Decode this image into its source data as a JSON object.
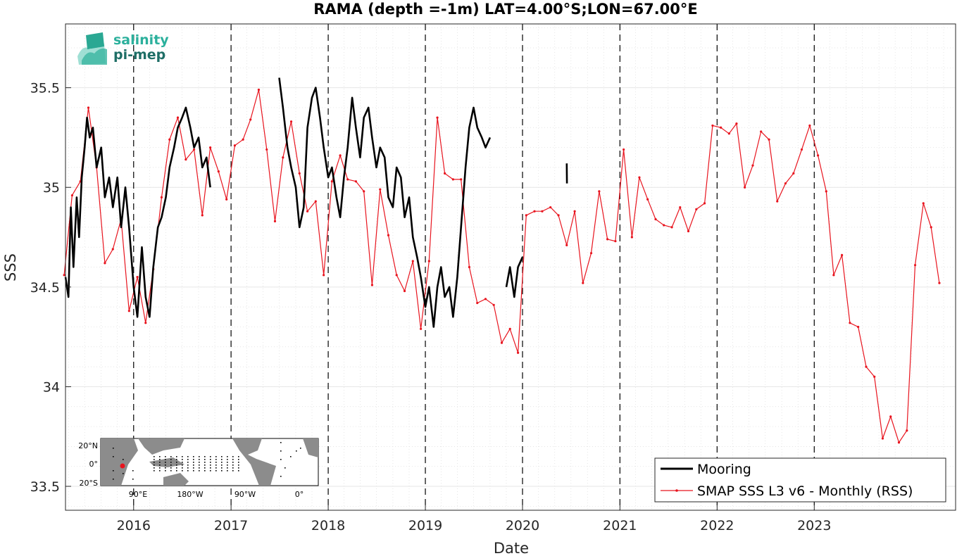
{
  "chart_data": {
    "type": "line",
    "title": "RAMA (depth =-1m) LAT=4.00°S;LON=67.00°E",
    "xlabel": "Date",
    "ylabel": "SSS",
    "xlim": [
      "2015-04-20",
      "2024-06-15"
    ],
    "ylim": [
      33.38,
      35.82
    ],
    "x_ticks": [
      "2016",
      "2017",
      "2018",
      "2019",
      "2020",
      "2021",
      "2022",
      "2023"
    ],
    "y_ticks": [
      "33.5",
      "34",
      "34.5",
      "35",
      "35.5"
    ],
    "year_lines": [
      "2016-01-01",
      "2017-01-01",
      "2018-01-01",
      "2019-01-01",
      "2020-01-01",
      "2021-01-01",
      "2022-01-01",
      "2023-01-01"
    ],
    "grid": true,
    "legend": "bottom-right",
    "colors": {
      "mooring": "#000000",
      "smap": "#e8141e"
    },
    "series": [
      {
        "name": "Mooring",
        "values": [
          [
            "2015-04-20",
            34.55
          ],
          [
            "2015-05-01",
            34.45
          ],
          [
            "2015-05-10",
            34.9
          ],
          [
            "2015-05-20",
            34.6
          ],
          [
            "2015-06-01",
            34.95
          ],
          [
            "2015-06-10",
            34.75
          ],
          [
            "2015-06-20",
            35.05
          ],
          [
            "2015-07-01",
            35.2
          ],
          [
            "2015-07-10",
            35.35
          ],
          [
            "2015-07-20",
            35.25
          ],
          [
            "2015-08-01",
            35.3
          ],
          [
            "2015-08-15",
            35.1
          ],
          [
            "2015-09-01",
            35.2
          ],
          [
            "2015-09-15",
            34.95
          ],
          [
            "2015-10-01",
            35.05
          ],
          [
            "2015-10-15",
            34.9
          ],
          [
            "2015-11-01",
            35.05
          ],
          [
            "2015-11-15",
            34.8
          ],
          [
            "2015-12-01",
            35.0
          ],
          [
            "2015-12-15",
            34.8
          ],
          [
            "2016-01-01",
            34.5
          ],
          [
            "2016-01-15",
            34.35
          ],
          [
            "2016-02-01",
            34.7
          ],
          [
            "2016-02-15",
            34.45
          ],
          [
            "2016-03-01",
            34.35
          ],
          [
            "2016-03-15",
            34.6
          ],
          [
            "2016-04-01",
            34.8
          ],
          [
            "2016-04-15",
            34.85
          ],
          [
            "2016-05-01",
            34.95
          ],
          [
            "2016-05-15",
            35.1
          ],
          [
            "2016-06-01",
            35.2
          ],
          [
            "2016-06-15",
            35.3
          ],
          [
            "2016-07-01",
            35.35
          ],
          [
            "2016-07-15",
            35.4
          ],
          [
            "2016-08-01",
            35.3
          ],
          [
            "2016-08-15",
            35.2
          ],
          [
            "2016-09-01",
            35.25
          ],
          [
            "2016-09-15",
            35.1
          ],
          [
            "2016-10-01",
            35.15
          ],
          [
            "2016-10-15",
            35.0
          ],
          [
            "2017-07-01",
            35.55
          ],
          [
            "2017-07-15",
            35.4
          ],
          [
            "2017-08-01",
            35.2
          ],
          [
            "2017-08-15",
            35.1
          ],
          [
            "2017-09-01",
            35.0
          ],
          [
            "2017-09-15",
            34.8
          ],
          [
            "2017-10-01",
            34.9
          ],
          [
            "2017-10-15",
            35.3
          ],
          [
            "2017-11-01",
            35.45
          ],
          [
            "2017-11-15",
            35.5
          ],
          [
            "2017-12-01",
            35.35
          ],
          [
            "2017-12-15",
            35.2
          ],
          [
            "2018-01-01",
            35.05
          ],
          [
            "2018-01-15",
            35.1
          ],
          [
            "2018-02-01",
            34.95
          ],
          [
            "2018-02-15",
            34.85
          ],
          [
            "2018-03-01",
            35.05
          ],
          [
            "2018-03-15",
            35.2
          ],
          [
            "2018-04-01",
            35.45
          ],
          [
            "2018-04-15",
            35.3
          ],
          [
            "2018-05-01",
            35.15
          ],
          [
            "2018-05-15",
            35.35
          ],
          [
            "2018-06-01",
            35.4
          ],
          [
            "2018-06-15",
            35.25
          ],
          [
            "2018-07-01",
            35.1
          ],
          [
            "2018-07-15",
            35.2
          ],
          [
            "2018-08-01",
            35.15
          ],
          [
            "2018-08-15",
            34.95
          ],
          [
            "2018-09-01",
            34.9
          ],
          [
            "2018-09-15",
            35.1
          ],
          [
            "2018-10-01",
            35.05
          ],
          [
            "2018-10-15",
            34.85
          ],
          [
            "2018-11-01",
            34.95
          ],
          [
            "2018-11-15",
            34.75
          ],
          [
            "2018-12-01",
            34.65
          ],
          [
            "2018-12-15",
            34.55
          ],
          [
            "2019-01-01",
            34.4
          ],
          [
            "2019-01-15",
            34.5
          ],
          [
            "2019-02-01",
            34.3
          ],
          [
            "2019-02-15",
            34.5
          ],
          [
            "2019-03-01",
            34.6
          ],
          [
            "2019-03-15",
            34.45
          ],
          [
            "2019-04-01",
            34.5
          ],
          [
            "2019-04-15",
            34.35
          ],
          [
            "2019-05-01",
            34.55
          ],
          [
            "2019-05-15",
            34.8
          ],
          [
            "2019-06-01",
            35.1
          ],
          [
            "2019-06-15",
            35.3
          ],
          [
            "2019-07-01",
            35.4
          ],
          [
            "2019-07-15",
            35.3
          ],
          [
            "2019-08-01",
            35.25
          ],
          [
            "2019-08-15",
            35.2
          ],
          [
            "2019-09-01",
            35.25
          ],
          [
            "2019-11-01",
            34.5
          ],
          [
            "2019-11-15",
            34.6
          ],
          [
            "2019-12-01",
            34.45
          ],
          [
            "2019-12-15",
            34.6
          ],
          [
            "2020-01-01",
            34.65
          ],
          [
            "2020-06-15",
            35.12
          ],
          [
            "2020-06-16",
            35.02
          ]
        ]
      },
      {
        "name": "SMAP SSS L3 v6 - Monthly (RSS)",
        "values": [
          [
            "2015-04-15",
            34.56
          ],
          [
            "2015-05-15",
            34.96
          ],
          [
            "2015-06-15",
            35.03
          ],
          [
            "2015-07-15",
            35.4
          ],
          [
            "2015-08-15",
            35.1
          ],
          [
            "2015-09-15",
            34.62
          ],
          [
            "2015-10-15",
            34.69
          ],
          [
            "2015-11-15",
            34.84
          ],
          [
            "2015-12-15",
            34.38
          ],
          [
            "2016-01-15",
            34.55
          ],
          [
            "2016-02-15",
            34.32
          ],
          [
            "2016-03-15",
            34.59
          ],
          [
            "2016-04-15",
            34.95
          ],
          [
            "2016-05-15",
            35.24
          ],
          [
            "2016-06-15",
            35.35
          ],
          [
            "2016-07-15",
            35.14
          ],
          [
            "2016-08-15",
            35.19
          ],
          [
            "2016-09-15",
            34.86
          ],
          [
            "2016-10-15",
            35.2
          ],
          [
            "2016-11-15",
            35.08
          ],
          [
            "2016-12-15",
            34.94
          ],
          [
            "2017-01-15",
            35.21
          ],
          [
            "2017-02-15",
            35.24
          ],
          [
            "2017-03-15",
            35.34
          ],
          [
            "2017-04-15",
            35.49
          ],
          [
            "2017-05-15",
            35.19
          ],
          [
            "2017-06-15",
            34.83
          ],
          [
            "2017-07-15",
            35.15
          ],
          [
            "2017-08-15",
            35.33
          ],
          [
            "2017-09-15",
            35.07
          ],
          [
            "2017-10-15",
            34.88
          ],
          [
            "2017-11-15",
            34.93
          ],
          [
            "2017-12-15",
            34.56
          ],
          [
            "2018-01-15",
            35.03
          ],
          [
            "2018-02-15",
            35.16
          ],
          [
            "2018-03-15",
            35.04
          ],
          [
            "2018-04-15",
            35.03
          ],
          [
            "2018-05-15",
            34.98
          ],
          [
            "2018-06-15",
            34.51
          ],
          [
            "2018-07-15",
            34.99
          ],
          [
            "2018-08-15",
            34.76
          ],
          [
            "2018-09-15",
            34.56
          ],
          [
            "2018-10-15",
            34.48
          ],
          [
            "2018-11-15",
            34.63
          ],
          [
            "2018-12-15",
            34.29
          ],
          [
            "2019-01-15",
            34.63
          ],
          [
            "2019-02-15",
            35.35
          ],
          [
            "2019-03-15",
            35.07
          ],
          [
            "2019-04-15",
            35.04
          ],
          [
            "2019-05-15",
            35.04
          ],
          [
            "2019-06-15",
            34.6
          ],
          [
            "2019-07-15",
            34.42
          ],
          [
            "2019-08-15",
            34.44
          ],
          [
            "2019-09-15",
            34.41
          ],
          [
            "2019-10-15",
            34.22
          ],
          [
            "2019-11-15",
            34.29
          ],
          [
            "2019-12-15",
            34.17
          ],
          [
            "2020-01-15",
            34.86
          ],
          [
            "2020-02-15",
            34.88
          ],
          [
            "2020-03-15",
            34.88
          ],
          [
            "2020-04-15",
            34.9
          ],
          [
            "2020-05-15",
            34.86
          ],
          [
            "2020-06-15",
            34.71
          ],
          [
            "2020-07-15",
            34.88
          ],
          [
            "2020-08-15",
            34.52
          ],
          [
            "2020-09-15",
            34.67
          ],
          [
            "2020-10-15",
            34.98
          ],
          [
            "2020-11-15",
            34.74
          ],
          [
            "2020-12-15",
            34.73
          ],
          [
            "2021-01-15",
            35.19
          ],
          [
            "2021-02-15",
            34.75
          ],
          [
            "2021-03-15",
            35.05
          ],
          [
            "2021-04-15",
            34.94
          ],
          [
            "2021-05-15",
            34.84
          ],
          [
            "2021-06-15",
            34.81
          ],
          [
            "2021-07-15",
            34.8
          ],
          [
            "2021-08-15",
            34.9
          ],
          [
            "2021-09-15",
            34.78
          ],
          [
            "2021-10-15",
            34.89
          ],
          [
            "2021-11-15",
            34.92
          ],
          [
            "2021-12-15",
            35.31
          ],
          [
            "2022-01-15",
            35.3
          ],
          [
            "2022-02-15",
            35.27
          ],
          [
            "2022-03-15",
            35.32
          ],
          [
            "2022-04-15",
            35.0
          ],
          [
            "2022-05-15",
            35.11
          ],
          [
            "2022-06-15",
            35.28
          ],
          [
            "2022-07-15",
            35.24
          ],
          [
            "2022-08-15",
            34.93
          ],
          [
            "2022-09-15",
            35.02
          ],
          [
            "2022-10-15",
            35.07
          ],
          [
            "2022-11-15",
            35.19
          ],
          [
            "2022-12-15",
            35.31
          ],
          [
            "2023-01-15",
            35.16
          ],
          [
            "2023-02-15",
            34.98
          ],
          [
            "2023-03-15",
            34.56
          ],
          [
            "2023-04-15",
            34.66
          ],
          [
            "2023-05-15",
            34.32
          ],
          [
            "2023-06-15",
            34.3
          ],
          [
            "2023-07-15",
            34.1
          ],
          [
            "2023-08-15",
            34.05
          ],
          [
            "2023-09-15",
            33.74
          ],
          [
            "2023-10-15",
            33.85
          ],
          [
            "2023-11-15",
            33.72
          ],
          [
            "2023-12-15",
            33.78
          ],
          [
            "2024-01-15",
            34.61
          ],
          [
            "2024-02-15",
            34.92
          ],
          [
            "2024-03-15",
            34.8
          ],
          [
            "2024-04-15",
            34.52
          ]
        ]
      }
    ]
  },
  "logo": {
    "line1": "salinity",
    "line2": "pi-mep"
  },
  "inset_map": {
    "lat_ticks": [
      "20°N",
      "0°",
      "20°S"
    ],
    "lon_ticks": [
      "90°E",
      "180°W",
      "90°W",
      "0°"
    ],
    "colors": {
      "land": "#8c8c8c",
      "ocean": "#ffffff",
      "marker": "#e8141e"
    }
  }
}
